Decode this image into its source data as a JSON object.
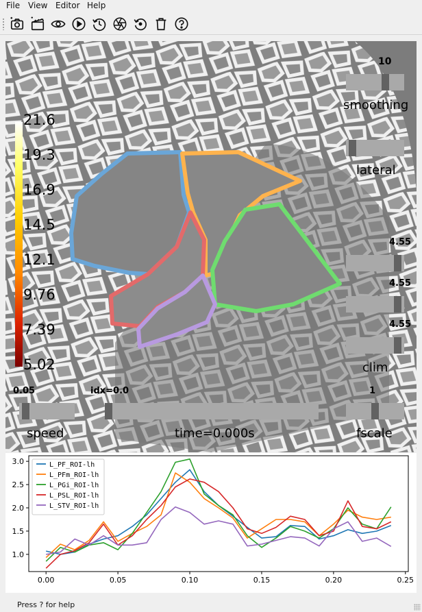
{
  "menubar": {
    "items": [
      {
        "label": "File"
      },
      {
        "label": "View"
      },
      {
        "label": "Editor"
      },
      {
        "label": "Help"
      }
    ]
  },
  "toolbar": {
    "buttons": [
      {
        "icon": "camera-icon"
      },
      {
        "icon": "clapperboard-icon"
      },
      {
        "icon": "eye-icon"
      },
      {
        "icon": "play-icon"
      },
      {
        "icon": "history-icon"
      },
      {
        "icon": "aperture-icon"
      },
      {
        "icon": "reset-icon"
      },
      {
        "icon": "trash-icon"
      },
      {
        "icon": "help-icon"
      }
    ]
  },
  "viewport": {
    "smoothing": {
      "value": "10",
      "label": "smoothing",
      "level": 0.7
    },
    "view": {
      "label": "lateral",
      "level": 0.05
    },
    "clim": {
      "label": "clim",
      "values": [
        "4.55",
        "4.55",
        "4.55"
      ],
      "levels": [
        0.95,
        0.95,
        0.95
      ]
    },
    "fscale": {
      "value": "1",
      "label": "fscale",
      "level": 0.5
    },
    "speed": {
      "value": "0.05",
      "label": "speed",
      "level": 0.06
    },
    "time": {
      "idx_label": "idx=0.0",
      "label": "time=0.000s",
      "level": 0.0
    },
    "colorbar": {
      "ticks": [
        "21.6",
        "19.3",
        "16.9",
        "14.5",
        "12.1",
        "9.76",
        "7.39",
        "5.02"
      ]
    },
    "rois": [
      {
        "name": "L_PF_ROI-lh",
        "color": "#6aa6d8"
      },
      {
        "name": "L_PFm_ROI-lh",
        "color": "#ffb34d"
      },
      {
        "name": "L_PGi_ROI-lh",
        "color": "#6fdc6f"
      },
      {
        "name": "L_PSL_ROI-lh",
        "color": "#e36a6a"
      },
      {
        "name": "L_STV_ROI-lh",
        "color": "#b89ae0"
      }
    ]
  },
  "chart_data": {
    "type": "line",
    "x": [
      0.0,
      0.01,
      0.02,
      0.03,
      0.04,
      0.05,
      0.06,
      0.07,
      0.08,
      0.09,
      0.1,
      0.11,
      0.12,
      0.13,
      0.14,
      0.15,
      0.16,
      0.17,
      0.18,
      0.19,
      0.2,
      0.21,
      0.22,
      0.23,
      0.24
    ],
    "xlim": [
      -0.012,
      0.252
    ],
    "ylim": [
      0.63,
      3.12
    ],
    "xticks": [
      "0.00",
      "0.05",
      "0.10",
      "0.15",
      "0.20",
      "0.25"
    ],
    "xtick_values": [
      0.0,
      0.05,
      0.1,
      0.15,
      0.2,
      0.25
    ],
    "yticks": [
      "1.0",
      "1.5",
      "2.0",
      "2.5",
      "3.0"
    ],
    "ytick_values": [
      1.0,
      1.5,
      2.0,
      2.5,
      3.0
    ],
    "legend_position": "top-left",
    "series": [
      {
        "name": "L_PF_ROI-lh",
        "color": "#1f77b4",
        "values": [
          1.07,
          1.0,
          1.05,
          1.22,
          1.33,
          1.4,
          1.6,
          1.85,
          2.2,
          2.55,
          2.82,
          2.35,
          2.05,
          1.82,
          1.58,
          1.35,
          1.38,
          1.62,
          1.6,
          1.33,
          1.4,
          1.53,
          1.45,
          1.5,
          1.62
        ]
      },
      {
        "name": "L_PFm_ROI-lh",
        "color": "#ff7f0e",
        "values": [
          0.93,
          1.22,
          1.1,
          1.3,
          1.7,
          1.28,
          1.45,
          1.6,
          1.85,
          2.75,
          2.55,
          2.2,
          2.0,
          1.78,
          1.35,
          1.55,
          1.75,
          1.75,
          1.7,
          1.4,
          1.65,
          1.95,
          1.8,
          1.75,
          1.8
        ]
      },
      {
        "name": "L_PGi_ROI-lh",
        "color": "#2ca02c",
        "values": [
          0.85,
          1.15,
          1.05,
          1.2,
          1.25,
          1.1,
          1.45,
          1.9,
          2.35,
          2.98,
          3.05,
          2.3,
          2.05,
          1.85,
          1.4,
          1.15,
          1.35,
          1.6,
          1.5,
          1.35,
          1.55,
          2.0,
          1.65,
          1.55,
          2.02
        ]
      },
      {
        "name": "L_PSL_ROI-lh",
        "color": "#d62728",
        "values": [
          0.7,
          1.0,
          1.08,
          1.25,
          1.65,
          1.2,
          1.4,
          1.75,
          2.05,
          2.45,
          2.62,
          2.55,
          2.35,
          2.0,
          1.55,
          1.45,
          1.58,
          1.82,
          1.75,
          1.4,
          1.5,
          2.15,
          1.6,
          1.55,
          1.7
        ]
      },
      {
        "name": "L_STV_ROI-lh",
        "color": "#9467bd",
        "values": [
          1.0,
          1.05,
          1.33,
          1.2,
          1.4,
          1.2,
          1.2,
          1.25,
          1.75,
          2.02,
          1.9,
          1.65,
          1.72,
          1.65,
          1.18,
          1.22,
          1.3,
          1.38,
          1.35,
          1.18,
          1.55,
          1.7,
          1.28,
          1.35,
          1.17
        ]
      }
    ]
  },
  "statusbar": {
    "text": "Press ? for help"
  }
}
